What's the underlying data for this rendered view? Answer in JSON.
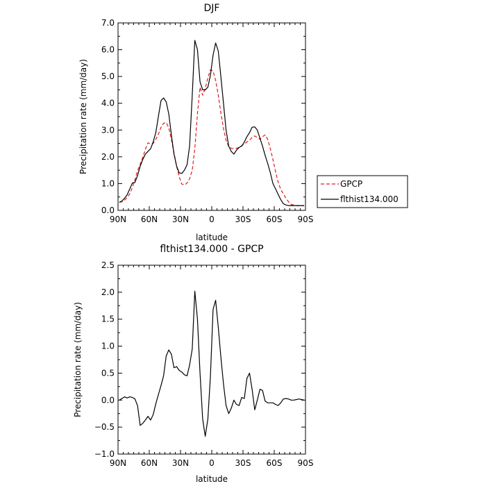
{
  "chart_data": [
    {
      "type": "line",
      "title": "DJF",
      "xlabel": "latitude",
      "ylabel": "Precipitation rate  (mm/day)",
      "x_tick_labels": [
        "90N",
        "60N",
        "30N",
        "0",
        "30S",
        "60S",
        "90S"
      ],
      "x_tick_values": [
        90,
        60,
        30,
        0,
        -30,
        -60,
        -90
      ],
      "xlim": [
        90,
        -90
      ],
      "ylim": [
        0,
        7
      ],
      "y_tick_labels": [
        "0.0",
        "1.0",
        "2.0",
        "3.0",
        "4.0",
        "5.0",
        "6.0",
        "7.0"
      ],
      "y_tick_values": [
        0,
        1,
        2,
        3,
        4,
        5,
        6,
        7
      ],
      "grid": false,
      "legend_position": "outside-right",
      "series": [
        {
          "name": "GPCP",
          "color": "#e31a1c",
          "style": "dashed",
          "x": [
            88.75,
            86.25,
            83.75,
            81.25,
            78.75,
            76.25,
            73.75,
            71.25,
            68.75,
            66.25,
            63.75,
            61.25,
            58.75,
            56.25,
            53.75,
            51.25,
            48.75,
            46.25,
            43.75,
            41.25,
            38.75,
            36.25,
            33.75,
            31.25,
            28.75,
            26.25,
            23.75,
            21.25,
            18.75,
            16.25,
            13.75,
            11.25,
            8.75,
            6.25,
            3.75,
            1.25,
            -1.25,
            -3.75,
            -6.25,
            -8.75,
            -11.25,
            -13.75,
            -16.25,
            -18.75,
            -21.25,
            -23.75,
            -26.25,
            -28.75,
            -31.25,
            -33.75,
            -36.25,
            -38.75,
            -41.25,
            -43.75,
            -46.25,
            -48.75,
            -51.25,
            -53.75,
            -56.25,
            -58.75,
            -61.25,
            -63.75,
            -66.25,
            -68.75,
            -71.25,
            -73.75,
            -76.25,
            -78.75,
            -81.25,
            -83.75,
            -86.25,
            -88.75
          ],
          "y": [
            0.3,
            0.32,
            0.38,
            0.48,
            0.62,
            0.85,
            1.15,
            1.48,
            1.72,
            1.98,
            2.28,
            2.52,
            2.48,
            2.5,
            2.65,
            2.85,
            3.1,
            3.25,
            3.28,
            3.08,
            2.65,
            2.15,
            1.65,
            1.25,
            0.98,
            0.95,
            1.02,
            1.18,
            1.5,
            2.3,
            3.6,
            4.6,
            4.3,
            4.55,
            4.95,
            5.25,
            5.2,
            4.85,
            4.3,
            3.65,
            3.05,
            2.62,
            2.38,
            2.32,
            2.3,
            2.32,
            2.35,
            2.42,
            2.48,
            2.55,
            2.62,
            2.72,
            2.78,
            2.72,
            2.65,
            2.75,
            2.82,
            2.65,
            2.3,
            1.9,
            1.45,
            1.05,
            0.78,
            0.62,
            0.45,
            0.32,
            0.22,
            0.2,
            0.18,
            0.17,
            0.17,
            0.17
          ]
        },
        {
          "name": "flthist134.000",
          "color": "#000000",
          "style": "solid",
          "x": [
            88.75,
            86.25,
            83.75,
            81.25,
            78.75,
            76.25,
            73.75,
            71.25,
            68.75,
            66.25,
            63.75,
            61.25,
            58.75,
            56.25,
            53.75,
            51.25,
            48.75,
            46.25,
            43.75,
            41.25,
            38.75,
            36.25,
            33.75,
            31.25,
            28.75,
            26.25,
            23.75,
            21.25,
            18.75,
            16.25,
            13.75,
            11.25,
            8.75,
            6.25,
            3.75,
            1.25,
            -1.25,
            -3.75,
            -6.25,
            -8.75,
            -11.25,
            -13.75,
            -16.25,
            -18.75,
            -21.25,
            -23.75,
            -26.25,
            -28.75,
            -31.25,
            -33.75,
            -36.25,
            -38.75,
            -41.25,
            -43.75,
            -46.25,
            -48.75,
            -51.25,
            -53.75,
            -56.25,
            -58.75,
            -61.25,
            -63.75,
            -66.25,
            -68.75,
            -71.25,
            -73.75,
            -76.25,
            -78.75,
            -81.25,
            -83.75,
            -86.25,
            -88.75
          ],
          "y": [
            0.3,
            0.35,
            0.45,
            0.58,
            0.8,
            1.02,
            1.05,
            1.3,
            1.65,
            1.9,
            2.1,
            2.2,
            2.3,
            2.55,
            2.9,
            3.5,
            4.1,
            4.2,
            4.05,
            3.6,
            2.8,
            2.1,
            1.65,
            1.4,
            1.38,
            1.5,
            1.7,
            2.4,
            4.3,
            6.35,
            6.0,
            4.8,
            4.5,
            4.5,
            4.6,
            5.05,
            5.8,
            6.25,
            5.95,
            5.0,
            4.0,
            3.0,
            2.4,
            2.2,
            2.1,
            2.25,
            2.35,
            2.4,
            2.55,
            2.75,
            2.9,
            3.1,
            3.12,
            3.0,
            2.7,
            2.4,
            2.05,
            1.75,
            1.4,
            1.0,
            0.8,
            0.6,
            0.4,
            0.25,
            0.2,
            0.18,
            0.18,
            0.18,
            0.18,
            0.18,
            0.18,
            0.18
          ]
        }
      ]
    },
    {
      "type": "line",
      "title": "flthist134.000  -  GPCP",
      "xlabel": "latitude",
      "ylabel": "Precipitation rate  (mm/day)",
      "x_tick_labels": [
        "90N",
        "60N",
        "30N",
        "0",
        "30S",
        "60S",
        "90S"
      ],
      "x_tick_values": [
        90,
        60,
        30,
        0,
        -30,
        -60,
        -90
      ],
      "xlim": [
        90,
        -90
      ],
      "ylim": [
        -1.0,
        2.5
      ],
      "y_tick_labels": [
        "−1.0",
        "−0.5",
        "0.0",
        "0.5",
        "1.0",
        "1.5",
        "2.0",
        "2.5"
      ],
      "y_tick_values": [
        -1.0,
        -0.5,
        0.0,
        0.5,
        1.0,
        1.5,
        2.0,
        2.5
      ],
      "grid": false,
      "series": [
        {
          "color": "#000000",
          "style": "solid",
          "x": [
            88.75,
            86.25,
            83.75,
            81.25,
            78.75,
            76.25,
            73.75,
            71.25,
            68.75,
            66.25,
            63.75,
            61.25,
            58.75,
            56.25,
            53.75,
            51.25,
            48.75,
            46.25,
            43.75,
            41.25,
            38.75,
            36.25,
            33.75,
            31.25,
            28.75,
            26.25,
            23.75,
            21.25,
            18.75,
            16.25,
            13.75,
            11.25,
            8.75,
            6.25,
            3.75,
            1.25,
            -1.25,
            -3.75,
            -6.25,
            -8.75,
            -11.25,
            -13.75,
            -16.25,
            -18.75,
            -21.25,
            -23.75,
            -26.25,
            -28.75,
            -31.25,
            -33.75,
            -36.25,
            -38.75,
            -41.25,
            -43.75,
            -46.25,
            -48.75,
            -51.25,
            -53.75,
            -56.25,
            -58.75,
            -61.25,
            -63.75,
            -66.25,
            -68.75,
            -71.25,
            -73.75,
            -76.25,
            -78.75,
            -81.25,
            -83.75,
            -86.25,
            -88.75
          ],
          "y": [
            0.0,
            0.03,
            0.06,
            0.04,
            0.06,
            0.05,
            0.02,
            -0.1,
            -0.47,
            -0.43,
            -0.37,
            -0.3,
            -0.37,
            -0.27,
            -0.07,
            0.1,
            0.27,
            0.45,
            0.82,
            0.93,
            0.85,
            0.6,
            0.62,
            0.55,
            0.52,
            0.47,
            0.45,
            0.65,
            0.95,
            2.02,
            1.5,
            0.5,
            -0.35,
            -0.67,
            -0.35,
            0.45,
            1.68,
            1.85,
            1.35,
            0.8,
            0.3,
            -0.1,
            -0.25,
            -0.15,
            0.0,
            -0.08,
            -0.1,
            0.05,
            0.03,
            0.4,
            0.5,
            0.2,
            -0.18,
            0.0,
            0.2,
            0.18,
            -0.02,
            -0.05,
            -0.05,
            -0.05,
            -0.08,
            -0.1,
            -0.05,
            0.02,
            0.03,
            0.02,
            0.0,
            0.0,
            0.01,
            0.02,
            0.01,
            0.0
          ]
        }
      ]
    }
  ]
}
